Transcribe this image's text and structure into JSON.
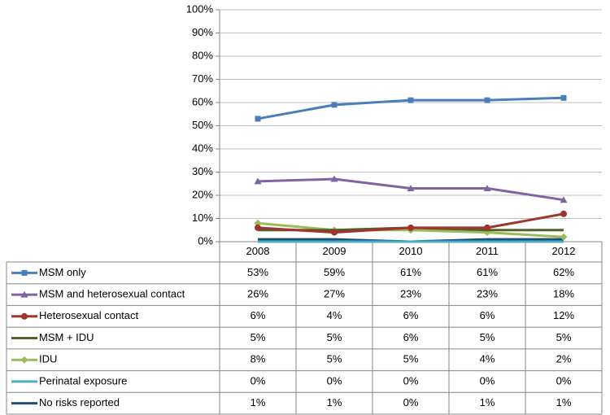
{
  "chart_data": {
    "type": "line",
    "categories": [
      "2008",
      "2009",
      "2010",
      "2011",
      "2012"
    ],
    "ylim": [
      0,
      100
    ],
    "yticks": [
      {
        "value": 0,
        "label": "0%"
      },
      {
        "value": 10,
        "label": "10%"
      },
      {
        "value": 20,
        "label": "20%"
      },
      {
        "value": 30,
        "label": "30%"
      },
      {
        "value": 40,
        "label": "40%"
      },
      {
        "value": 50,
        "label": "50%"
      },
      {
        "value": 60,
        "label": "60%"
      },
      {
        "value": 70,
        "label": "70%"
      },
      {
        "value": 80,
        "label": "80%"
      },
      {
        "value": 90,
        "label": "90%"
      },
      {
        "value": 100,
        "label": "100%"
      }
    ],
    "grid": true,
    "series": [
      {
        "name": "MSM only",
        "color": "#4a7ebb",
        "marker": "square",
        "values": [
          53,
          59,
          61,
          61,
          62
        ],
        "value_labels": [
          "53%",
          "59%",
          "61%",
          "61%",
          "62%"
        ]
      },
      {
        "name": "MSM and heterosexual contact",
        "color": "#8064a2",
        "marker": "triangle",
        "values": [
          26,
          27,
          23,
          23,
          18
        ],
        "value_labels": [
          "26%",
          "27%",
          "23%",
          "23%",
          "18%"
        ]
      },
      {
        "name": "Heterosexual contact",
        "color": "#a0342f",
        "marker": "circle",
        "values": [
          6,
          4,
          6,
          6,
          12
        ],
        "value_labels": [
          "6%",
          "4%",
          "6%",
          "6%",
          "12%"
        ]
      },
      {
        "name": "MSM + IDU",
        "color": "#4f6228",
        "values": [
          5,
          5,
          6,
          5,
          5
        ],
        "value_labels": [
          "5%",
          "5%",
          "6%",
          "5%",
          "5%"
        ]
      },
      {
        "name": "IDU",
        "color": "#9bbb59",
        "marker": "diamond",
        "values": [
          8,
          5,
          5,
          4,
          2
        ],
        "value_labels": [
          "8%",
          "5%",
          "5%",
          "4%",
          "2%"
        ]
      },
      {
        "name": "Perinatal exposure",
        "color": "#4bacc6",
        "values": [
          0,
          0,
          0,
          0,
          0
        ],
        "value_labels": [
          "0%",
          "0%",
          "0%",
          "0%",
          "0%"
        ]
      },
      {
        "name": "No risks reported",
        "color": "#1f4e79",
        "values": [
          1,
          1,
          0,
          1,
          1
        ],
        "value_labels": [
          "1%",
          "1%",
          "0%",
          "1%",
          "1%"
        ]
      }
    ]
  }
}
